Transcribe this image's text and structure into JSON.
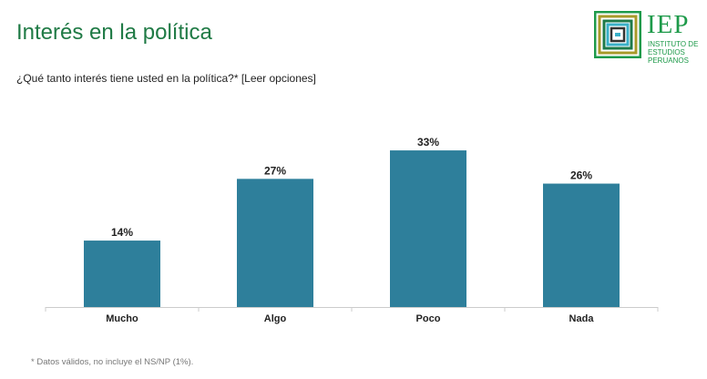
{
  "header": {
    "title": "Interés en la política",
    "subtitle": "¿Qué tanto interés tiene usted en la política?* [Leer opciones]"
  },
  "logo": {
    "text": "IEP",
    "line1": "INSTITUTO DE",
    "line2": "ESTUDIOS",
    "line3": "PERUANOS"
  },
  "footnote": "* Datos válidos, no incluye el NS/NP (1%).",
  "colors": {
    "bar": "#2e7f9b",
    "title": "#1f7a45"
  },
  "chart_data": {
    "type": "bar",
    "categories": [
      "Mucho",
      "Algo",
      "Poco",
      "Nada"
    ],
    "values": [
      14,
      27,
      33,
      26
    ],
    "labels": [
      "14%",
      "27%",
      "33%",
      "26%"
    ],
    "unit": "%",
    "grid": false
  }
}
